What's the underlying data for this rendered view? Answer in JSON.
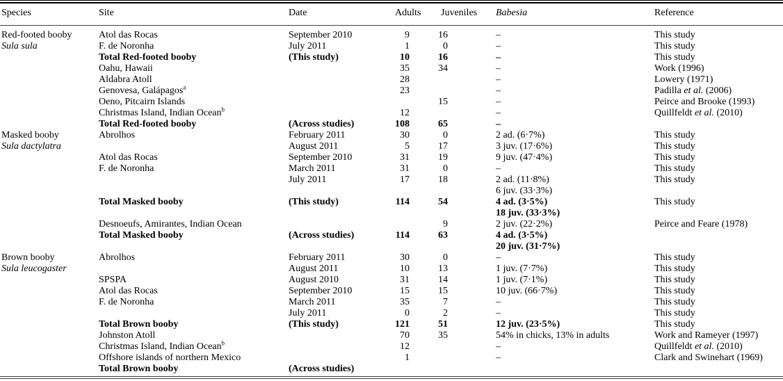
{
  "table": {
    "columns": [
      {
        "key": "species",
        "label": "Species"
      },
      {
        "key": "site",
        "label": "Site"
      },
      {
        "key": "date",
        "label": "Date"
      },
      {
        "key": "adults",
        "label": "Adults"
      },
      {
        "key": "juveniles",
        "label": "Juveniles"
      },
      {
        "key": "babesia",
        "label": "Babesia",
        "italic": true
      },
      {
        "key": "reference",
        "label": "Reference"
      }
    ],
    "rows": [
      {
        "species": "Red-footed booby",
        "site": "Atol das Rocas",
        "date": "September 2010",
        "adults": "9",
        "juveniles": "16",
        "babesia": "–",
        "reference": "This study"
      },
      {
        "species": "Sula sula",
        "species_italic": true,
        "site": "F. de Noronha",
        "date": "July 2011",
        "adults": "1",
        "juveniles": "0",
        "babesia": "–",
        "reference": "This study"
      },
      {
        "bold": true,
        "site": "Total Red-footed booby",
        "date": "(This study)",
        "adults": "10",
        "juveniles": "16",
        "babesia": "–",
        "reference": "This study"
      },
      {
        "site": "Oahu, Hawaii",
        "adults": "35",
        "juveniles": "34",
        "babesia": "–",
        "reference": "Work (1996)"
      },
      {
        "site": "Aldabra Atoll",
        "adults": "28",
        "babesia": "–",
        "reference": "Lowery (1971)"
      },
      {
        "site": "Genovesa, Galápagos",
        "site_sup": "a",
        "adults": "23",
        "babesia": "–",
        "reference": [
          {
            "t": "Padilla "
          },
          {
            "t": "et al.",
            "i": true
          },
          {
            "t": " (2006)"
          }
        ]
      },
      {
        "site": "Oeno, Pitcairn Islands",
        "juveniles": "15",
        "babesia": "–",
        "reference": "Peirce and Brooke (1993)"
      },
      {
        "site": "Christmas Island, Indian Ocean",
        "site_sup": "b",
        "adults": "12",
        "babesia": "–",
        "reference": [
          {
            "t": "Quillfeldt "
          },
          {
            "t": "et al.",
            "i": true
          },
          {
            "t": " (2010)"
          }
        ]
      },
      {
        "bold": true,
        "site": "Total Red-footed booby",
        "date": "(Across studies)",
        "adults": "108",
        "juveniles": "65",
        "babesia": "–"
      },
      {
        "species": "Masked booby",
        "site": "Abrolhos",
        "date": "February 2011",
        "adults": "30",
        "juveniles": "0",
        "babesia": "2 ad. (6·7%)",
        "reference": "This study"
      },
      {
        "species": "Sula dactylatra",
        "species_italic": true,
        "date": "August 2011",
        "adults": "5",
        "juveniles": "17",
        "babesia": "3 juv. (17·6%)",
        "reference": "This study"
      },
      {
        "site": "Atol das Rocas",
        "date": "September 2010",
        "adults": "31",
        "juveniles": "19",
        "babesia": "9 juv. (47·4%)",
        "reference": "This study"
      },
      {
        "site": "F. de Noronha",
        "date": "March 2011",
        "adults": "31",
        "juveniles": "0",
        "babesia": "–",
        "reference": "This study"
      },
      {
        "date": "July 2011",
        "adults": "17",
        "juveniles": "18",
        "babesia": "2 ad. (11·8%)",
        "reference": "This study"
      },
      {
        "babesia": "6 juv. (33·3%)"
      },
      {
        "bold": true,
        "site": "Total Masked booby",
        "date": "(This study)",
        "adults": "114",
        "juveniles": "54",
        "babesia": "4 ad. (3·5%)",
        "reference": "This study"
      },
      {
        "bold": true,
        "babesia": "18 juv. (33·3%)"
      },
      {
        "site": "Desnoeufs, Amirantes, Indian Ocean",
        "juveniles": "9",
        "babesia": "2 juv. (22·2%)",
        "reference": "Peirce and Feare (1978)"
      },
      {
        "bold": true,
        "site": "Total Masked booby",
        "date": "(Across studies)",
        "adults": "114",
        "juveniles": "63",
        "babesia": "4 ad. (3·5%)"
      },
      {
        "bold": true,
        "babesia": "20 juv. (31·7%)"
      },
      {
        "species": "Brown booby",
        "site": "Abrolhos",
        "date": "February 2011",
        "adults": "30",
        "juveniles": "0",
        "babesia": "–",
        "reference": "This study"
      },
      {
        "species": "Sula leucogaster",
        "species_italic": true,
        "date": "August 2011",
        "adults": "10",
        "juveniles": "13",
        "babesia": "1 juv. (7·7%)",
        "reference": "This study"
      },
      {
        "site": "SPSPA",
        "date": "August 2010",
        "adults": "31",
        "juveniles": "14",
        "babesia": "1 juv. (7·1%)",
        "reference": "This study"
      },
      {
        "site": "Atol das Rocas",
        "date": "September 2010",
        "adults": "15",
        "juveniles": "15",
        "babesia": "10 juv. (66·7%)",
        "reference": "This study"
      },
      {
        "site": "F. de Noronha",
        "date": "March 2011",
        "adults": "35",
        "juveniles": "7",
        "babesia": "–",
        "reference": "This study"
      },
      {
        "date": "July 2011",
        "adults": "0",
        "juveniles": "2",
        "babesia": "–",
        "reference": "This study"
      },
      {
        "bold": true,
        "site": "Total Brown booby",
        "date": "(This study)",
        "adults": "121",
        "juveniles": "51",
        "babesia": "12 juv. (23·5%)",
        "reference": "This study"
      },
      {
        "site": "Johnston Atoll",
        "adults": "70",
        "juveniles": "35",
        "babesia": "54% in chicks, 13% in adults",
        "reference": "Work and Rameyer (1997)"
      },
      {
        "site": "Christmas Island, Indian Ocean",
        "site_sup": "b",
        "adults": "12",
        "babesia": "–",
        "reference": [
          {
            "t": "Quillfeldt "
          },
          {
            "t": "et al.",
            "i": true
          },
          {
            "t": " (2010)"
          }
        ]
      },
      {
        "site": "Offshore islands of northern Mexico",
        "adults": "1",
        "babesia": "–",
        "reference": "Clark and Swinehart (1969)"
      },
      {
        "bold": true,
        "site": "Total Brown booby",
        "date": "(Across studies)"
      }
    ]
  }
}
